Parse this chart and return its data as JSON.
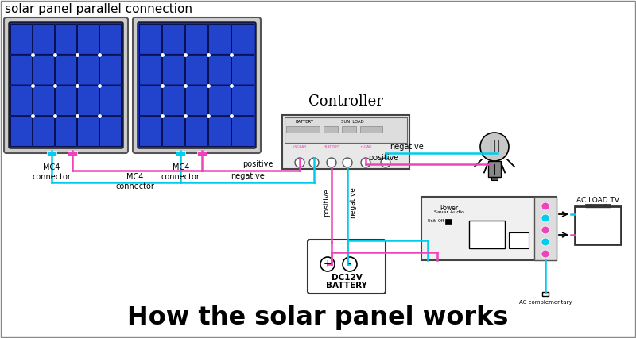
{
  "title_top": "solar panel parallel connection",
  "title_bottom": "How the solar panel works",
  "bg_color": "#ffffff",
  "wire_cyan": "#00ccee",
  "wire_magenta": "#ee44bb",
  "panel_bg": "#1a2eaa",
  "panel_border": "#333333",
  "controller_label": "Controller",
  "battery_label_1": "DC12V",
  "battery_label_2": "BATTERY",
  "mc4_labels": [
    "MC4\nconnector",
    "MC4\nconnector",
    "MC4\nconnector"
  ],
  "ac_load_label": "AC LOAD TV",
  "ac_comp_label": "AC complementary",
  "positive_label": "positive",
  "negative_label": "negative"
}
